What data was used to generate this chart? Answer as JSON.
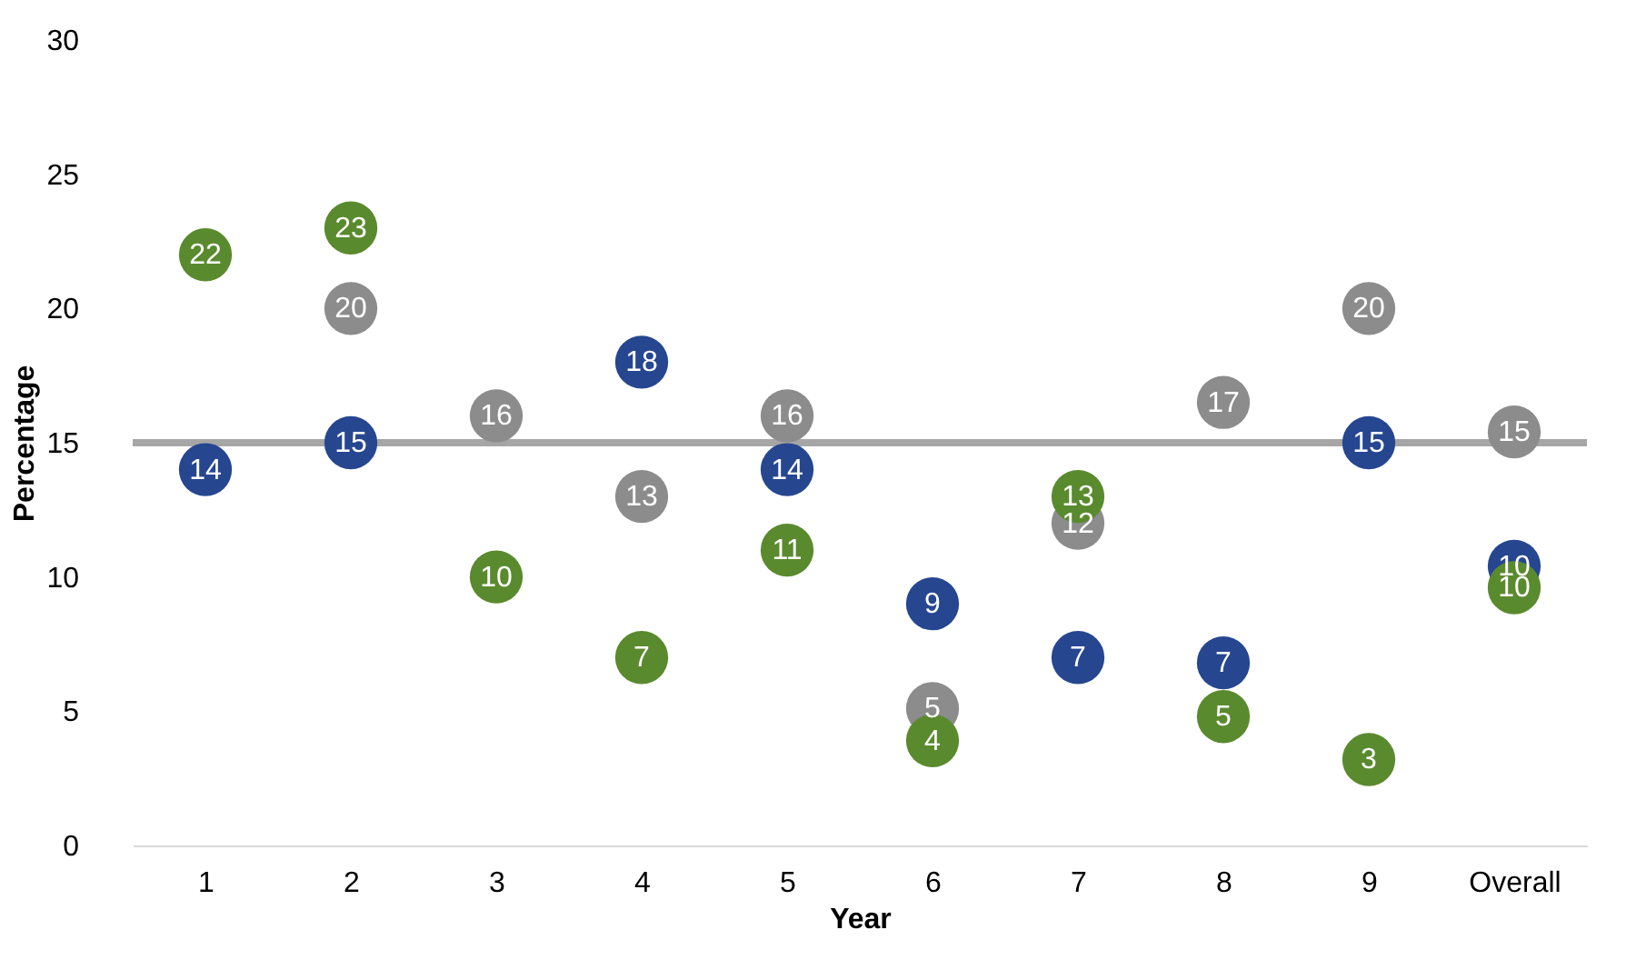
{
  "chart_data": {
    "type": "scatter",
    "xlabel": "Year",
    "ylabel": "Percentage",
    "categories": [
      "1",
      "2",
      "3",
      "4",
      "5",
      "6",
      "7",
      "8",
      "9",
      "Overall"
    ],
    "ylim": [
      0,
      30
    ],
    "yticks": [
      0,
      5,
      10,
      15,
      20,
      25,
      30
    ],
    "marker": "circle",
    "series": [
      {
        "color": "#264690",
        "values": [
          14,
          15,
          null,
          18,
          14,
          9,
          7,
          6.8,
          15,
          10.4
        ],
        "value_labels": [
          "14",
          "15",
          null,
          "18",
          "14",
          "9",
          "7",
          "7",
          "15",
          "10"
        ]
      },
      {
        "color": "#8c8c8c",
        "values": [
          null,
          20,
          16,
          13,
          16,
          5.1,
          12,
          16.5,
          20,
          15.4
        ],
        "value_labels": [
          null,
          "20",
          "16",
          "13",
          "16",
          "5",
          "12",
          "17",
          "20",
          "15"
        ]
      },
      {
        "color": "#5a8a2e",
        "values": [
          22,
          23,
          10,
          7,
          11,
          3.9,
          13,
          4.8,
          3.2,
          9.6
        ],
        "value_labels": [
          "22",
          "23",
          "10",
          "7",
          "11",
          "4",
          "13",
          "5",
          "3",
          "10"
        ]
      }
    ],
    "ref_lines": [
      {
        "axis": "y",
        "value": 15,
        "color": "#a6a6a6"
      }
    ]
  }
}
